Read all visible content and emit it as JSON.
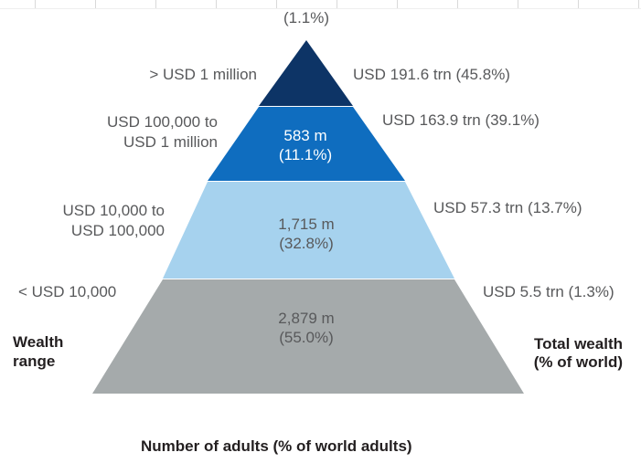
{
  "diagram": {
    "top_share": "(1.1%)",
    "tiers": [
      {
        "range": "> USD 1 million",
        "count": "",
        "share": "",
        "wealth": "USD 191.6 trn (45.8%)",
        "color": "#0d3466"
      },
      {
        "range_line1": "USD 100,000 to",
        "range_line2": "USD 1 million",
        "count": "583 m",
        "share": "(11.1%)",
        "wealth": "USD 163.9 trn (39.1%)",
        "color": "#0f6dbf"
      },
      {
        "range_line1": "USD 10,000 to",
        "range_line2": "USD 100,000",
        "count": "1,715 m",
        "share": "(32.8%)",
        "wealth": "USD 57.3 trn (13.7%)",
        "color": "#a6d2ee"
      },
      {
        "range": "< USD 10,000",
        "count": "2,879 m",
        "share": "(55.0%)",
        "wealth": "USD 5.5 trn (1.3%)",
        "color": "#a5aaab"
      }
    ],
    "left_heading_line1": "Wealth",
    "left_heading_line2": "range",
    "right_heading_line1": "Total wealth",
    "right_heading_line2": "(% of world)",
    "bottom_caption": "Number of adults (% of world adults)"
  }
}
